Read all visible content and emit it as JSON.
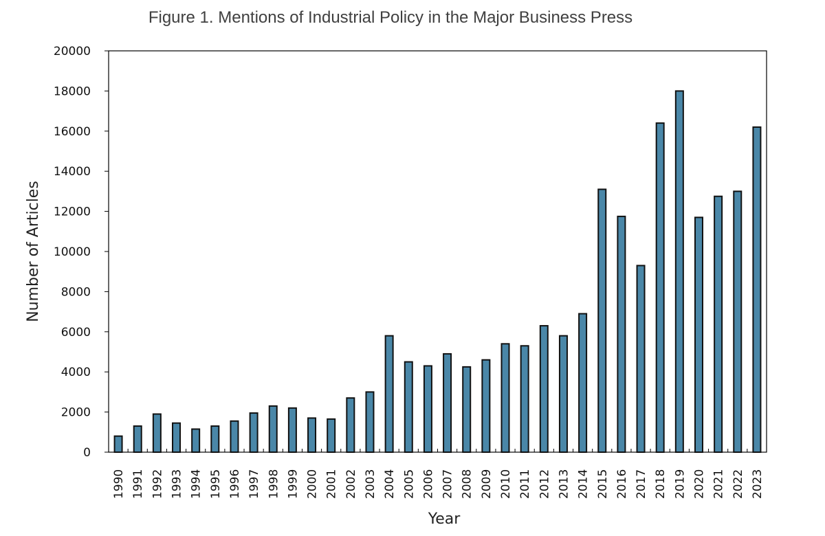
{
  "chart_data": {
    "type": "bar",
    "title": "Figure 1. Mentions of Industrial Policy in the Major Business Press",
    "xlabel": "Year",
    "ylabel": "Number of Articles",
    "ylim": [
      0,
      20000
    ],
    "yticks": [
      "0",
      "2000",
      "4000",
      "6000",
      "8000",
      "10000",
      "12000",
      "14000",
      "16000",
      "18000",
      "20000"
    ],
    "grid": false,
    "bar_color": "#4a87a8",
    "categories": [
      "1990",
      "1991",
      "1992",
      "1993",
      "1994",
      "1995",
      "1996",
      "1997",
      "1998",
      "1999",
      "2000",
      "2001",
      "2002",
      "2003",
      "2004",
      "2005",
      "2006",
      "2007",
      "2008",
      "2009",
      "2010",
      "2011",
      "2012",
      "2013",
      "2014",
      "2015",
      "2016",
      "2017",
      "2018",
      "2019",
      "2020",
      "2021",
      "2022",
      "2023"
    ],
    "values": [
      800,
      1300,
      1900,
      1450,
      1150,
      1300,
      1550,
      1950,
      2300,
      2200,
      1700,
      1650,
      2700,
      3000,
      5800,
      4500,
      4300,
      4900,
      4250,
      4600,
      5400,
      5300,
      6300,
      5800,
      6900,
      13100,
      11750,
      9300,
      16400,
      18000,
      11700,
      12750,
      13000,
      16200
    ]
  }
}
